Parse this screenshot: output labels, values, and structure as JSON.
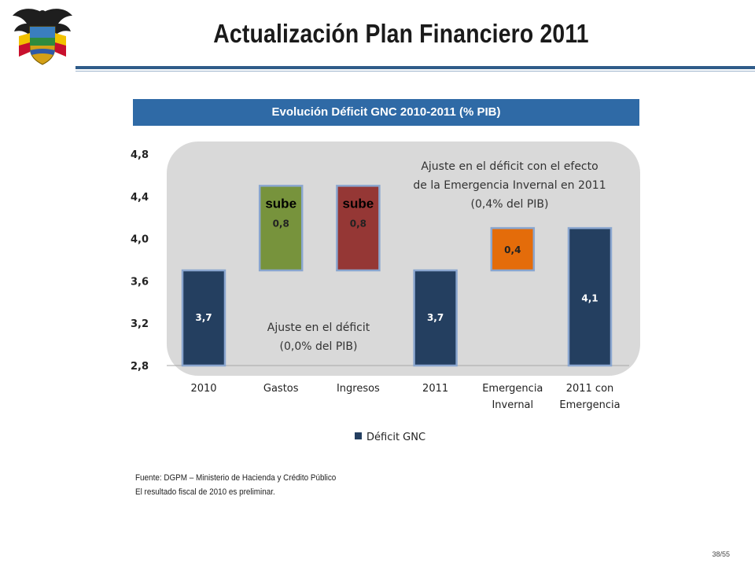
{
  "header": {
    "title": "Actualización Plan Financiero 2011"
  },
  "chart_title": "Evolución Déficit GNC 2010-2011 (% PIB)",
  "chart_data": {
    "type": "bar",
    "categories": [
      "2010",
      "Gastos",
      "Ingresos",
      "2011",
      "Emergencia|Invernal",
      "2011 con|Emergencia"
    ],
    "bars": [
      {
        "category": "2010",
        "base": 2.8,
        "top": 3.7,
        "label": "3,7",
        "color": "#243f60",
        "label_color": "#ffffff"
      },
      {
        "category": "Gastos",
        "base": 3.7,
        "top": 4.5,
        "label": "0,8",
        "color": "#77933c",
        "label_color": "#222222",
        "tag": "sube"
      },
      {
        "category": "Ingresos",
        "base": 3.7,
        "top": 4.5,
        "label": "0,8",
        "color": "#953735",
        "label_color": "#222222",
        "tag": "sube"
      },
      {
        "category": "2011",
        "base": 2.8,
        "top": 3.7,
        "label": "3,7",
        "color": "#243f60",
        "label_color": "#ffffff"
      },
      {
        "category": "Emergencia Invernal",
        "base": 3.7,
        "top": 4.1,
        "label": "0,4",
        "color": "#e46c0a",
        "label_color": "#222222"
      },
      {
        "category": "2011 con Emergencia",
        "base": 2.8,
        "top": 4.1,
        "label": "4,1",
        "color": "#243f60",
        "label_color": "#ffffff"
      }
    ],
    "y_ticks": [
      "2,8",
      "3,2",
      "3,6",
      "4,0",
      "4,4",
      "4,8"
    ],
    "ylim": [
      2.8,
      4.8
    ],
    "legend": {
      "label": "Déficit GNC",
      "color": "#243f60",
      "position": "bottom"
    },
    "annotations": {
      "ajuste_cero": [
        "Ajuste en el déficit",
        "(0,0% del PIB)"
      ],
      "ajuste_emergencia": [
        "Ajuste en el déficit con el efecto",
        "de la Emergencia Invernal en 2011",
        "(0,4% del PIB)"
      ]
    }
  },
  "footer": {
    "source": "Fuente: DGPM – Ministerio de Hacienda y Crédito Público",
    "note": "El resultado fiscal de 2010 es preliminar.",
    "page": "38/55"
  },
  "colors": {
    "rule": "#2f5c8a",
    "title_bar": "#2f6aa6",
    "panel": "#d9d9d9"
  },
  "emblem_icon": "coat-of-arms-icon"
}
